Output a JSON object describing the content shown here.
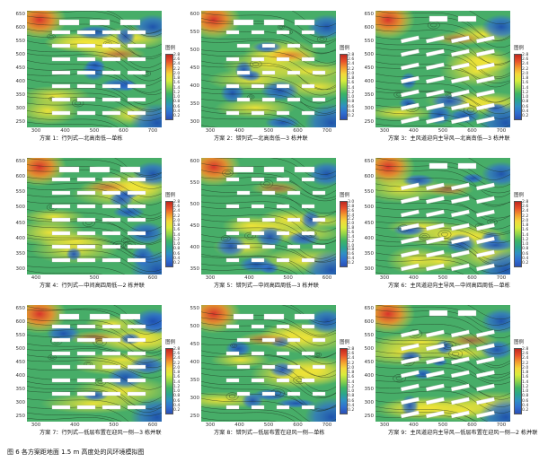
{
  "figure_caption": "图 6 各方案距地面 1.5 m 高度处的风环境模拟图",
  "legend_title": "图例",
  "legend_ticks": [
    "2.8",
    "2.6",
    "2.4",
    "2.2",
    "2.0",
    "1.8",
    "1.6",
    "1.4",
    "1.2",
    "1.0",
    "0.8",
    "0.6",
    "0.4",
    "0.2"
  ],
  "legend_ticks_p5": [
    "3.0",
    "2.8",
    "2.6",
    "2.4",
    "2.2",
    "2.0",
    "1.8",
    "1.6",
    "1.4",
    "1.2",
    "1.0",
    "0.8",
    "0.6",
    "0.4",
    "0.2"
  ],
  "colors": {
    "high": "#d9342b",
    "mid": "#f2e436",
    "low": "#2f6fd0",
    "base": "#3aa86a"
  },
  "panels": [
    {
      "caption": "方案 1：行列式—北高南低—单栋",
      "y_ticks": [
        "650",
        "600",
        "550",
        "500",
        "450",
        "400",
        "350",
        "300",
        "250"
      ],
      "x_ticks": [
        "300",
        "400",
        "500",
        "600",
        "700"
      ]
    },
    {
      "caption": "方案 2：错列式—北高南低—3 栋并联",
      "y_ticks": [
        "600",
        "550",
        "500",
        "450",
        "400",
        "350",
        "300"
      ],
      "x_ticks": [
        "300",
        "400",
        "500",
        "600",
        "700"
      ]
    },
    {
      "caption": "方案 3：主风道迎向主导风—北高南低—3 栋并联",
      "y_ticks": [
        "650",
        "600",
        "550",
        "500",
        "450",
        "400",
        "350",
        "300",
        "250"
      ],
      "x_ticks": [
        "300",
        "400",
        "500",
        "600",
        "700"
      ]
    },
    {
      "caption": "方案 4：行列式—中间高四周低—2 栋并联",
      "y_ticks": [
        "650",
        "600",
        "550",
        "500",
        "450",
        "400",
        "350",
        "300"
      ],
      "x_ticks": [
        "400",
        "500",
        "600"
      ]
    },
    {
      "caption": "方案 5：错列式—中间高四周低—3 栋并联",
      "y_ticks": [
        "600",
        "550",
        "500",
        "450",
        "400",
        "350"
      ],
      "x_ticks": [
        "300",
        "400",
        "500",
        "600"
      ]
    },
    {
      "caption": "方案 6：主风道迎向主导风—中间高四周低—单栋",
      "y_ticks": [
        "650",
        "600",
        "550",
        "500",
        "450",
        "400",
        "350",
        "300"
      ],
      "x_ticks": [
        "300",
        "400",
        "500",
        "600",
        "700"
      ]
    },
    {
      "caption": "方案 7：行列式—低层布置在迎风一侧—3 栋并联",
      "y_ticks": [
        "650",
        "600",
        "550",
        "500",
        "450",
        "400",
        "350",
        "300",
        "250"
      ],
      "x_ticks": [
        "300",
        "400",
        "500",
        "600"
      ]
    },
    {
      "caption": "方案 8：错列式—低层布置在迎风一侧—单栋",
      "y_ticks": [
        "550",
        "500",
        "450",
        "400",
        "350",
        "300",
        "250"
      ],
      "x_ticks": [
        "300",
        "400",
        "500",
        "600",
        "700"
      ]
    },
    {
      "caption": "方案 9：主风道迎向主导风—低层布置在迎风一侧—2 栋并联",
      "y_ticks": [
        "650",
        "600",
        "550",
        "500",
        "450",
        "400",
        "350",
        "300",
        "250"
      ],
      "x_ticks": [
        "300",
        "400",
        "500",
        "600",
        "700"
      ]
    }
  ]
}
